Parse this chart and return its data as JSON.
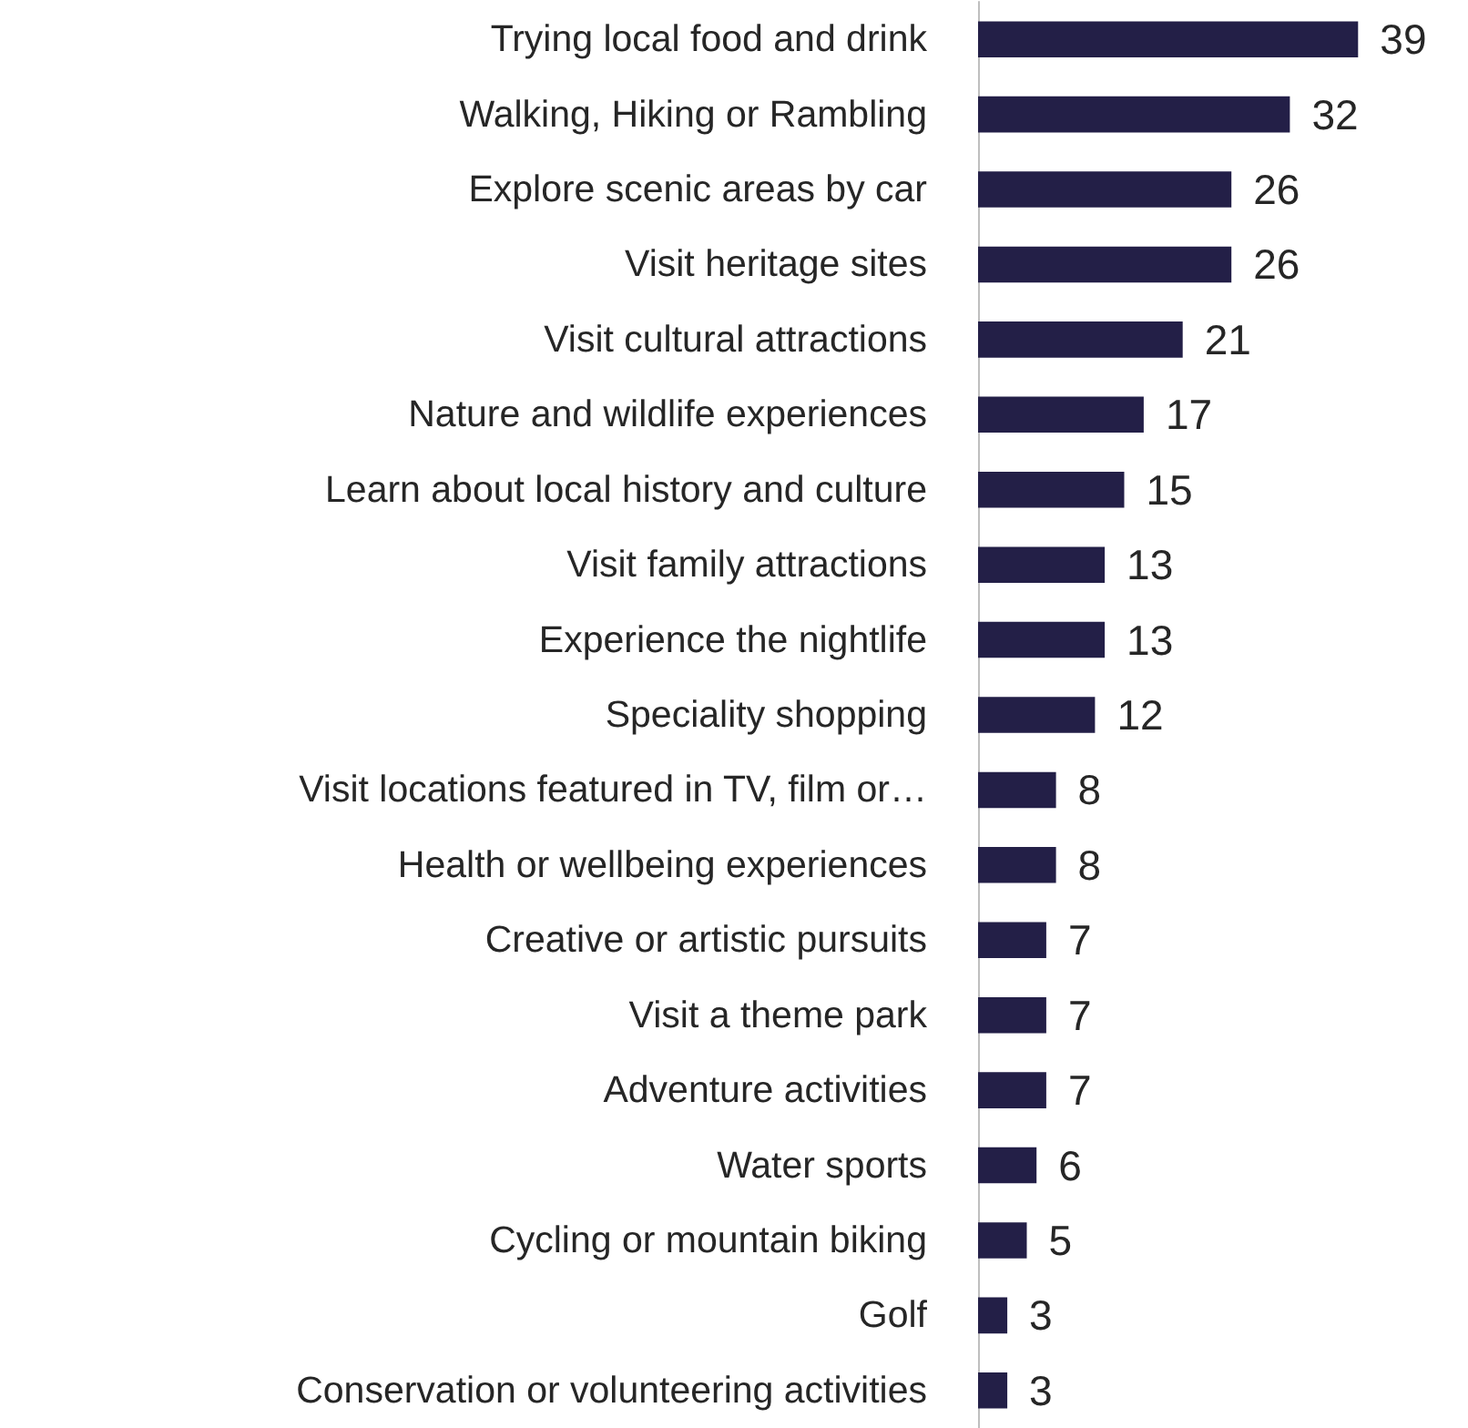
{
  "chart_data": {
    "type": "bar",
    "orientation": "horizontal",
    "data_labels": true,
    "categories": [
      "Trying local food and drink",
      "Walking, Hiking or Rambling",
      "Explore scenic areas by car",
      "Visit heritage sites",
      "Visit cultural attractions",
      "Nature and wildlife experiences",
      "Learn about local history and culture",
      "Visit family attractions",
      "Experience the nightlife",
      "Speciality shopping",
      "Visit locations featured in TV, film or…",
      "Health or wellbeing experiences",
      "Creative or artistic pursuits",
      "Visit a theme park",
      "Adventure activities",
      "Water sports",
      "Cycling or mountain biking",
      "Golf",
      "Conservation or volunteering activities"
    ],
    "values": [
      39,
      32,
      26,
      26,
      21,
      17,
      15,
      13,
      13,
      12,
      8,
      8,
      7,
      7,
      7,
      6,
      5,
      3,
      3
    ],
    "color": "#231f47"
  }
}
